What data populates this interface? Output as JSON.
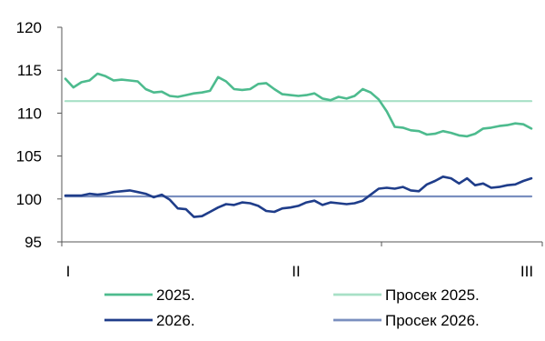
{
  "chart_data": {
    "type": "line",
    "xlabel": "",
    "ylabel": "",
    "x_tick_labels": [
      "I",
      "II",
      "III"
    ],
    "y_ticks": [
      95,
      100,
      105,
      110,
      115,
      120
    ],
    "ylim": [
      95,
      120
    ],
    "grid": false,
    "legend_position": "bottom",
    "series": [
      {
        "name": "2025.",
        "color": "#4dbb8e",
        "values": [
          114.0,
          113.0,
          113.6,
          113.8,
          114.6,
          114.3,
          113.8,
          113.9,
          113.8,
          113.7,
          112.8,
          112.4,
          112.5,
          112.0,
          111.9,
          112.1,
          112.3,
          112.4,
          112.6,
          114.2,
          113.7,
          112.8,
          112.7,
          112.8,
          113.4,
          113.5,
          112.8,
          112.2,
          112.1,
          112.0,
          112.1,
          112.3,
          111.7,
          111.5,
          111.9,
          111.7,
          112.0,
          112.8,
          112.4,
          111.6,
          110.2,
          108.4,
          108.3,
          108.0,
          107.9,
          107.5,
          107.6,
          107.9,
          107.7,
          107.4,
          107.3,
          107.6,
          108.2,
          108.3,
          108.5,
          108.6,
          108.8,
          108.7,
          108.2
        ]
      },
      {
        "name": "Просек 2025.",
        "color": "#a8e0c6",
        "values": [
          111.4,
          111.4
        ]
      },
      {
        "name": "2026.",
        "color": "#1f3d8a",
        "values": [
          100.4,
          100.4,
          100.4,
          100.6,
          100.5,
          100.6,
          100.8,
          100.9,
          101.0,
          100.8,
          100.6,
          100.2,
          100.5,
          99.9,
          98.9,
          98.8,
          97.9,
          98.0,
          98.5,
          99.0,
          99.4,
          99.3,
          99.6,
          99.5,
          99.2,
          98.6,
          98.5,
          98.9,
          99.0,
          99.2,
          99.6,
          99.8,
          99.3,
          99.6,
          99.5,
          99.4,
          99.5,
          99.8,
          100.5,
          101.2,
          101.3,
          101.2,
          101.4,
          101.0,
          100.9,
          101.7,
          102.1,
          102.6,
          102.4,
          101.8,
          102.4,
          101.6,
          101.8,
          101.3,
          101.4,
          101.6,
          101.7,
          102.1,
          102.4
        ]
      },
      {
        "name": "Просек 2026.",
        "color": "#7a8fbf",
        "values": [
          100.3,
          100.3
        ]
      }
    ]
  }
}
